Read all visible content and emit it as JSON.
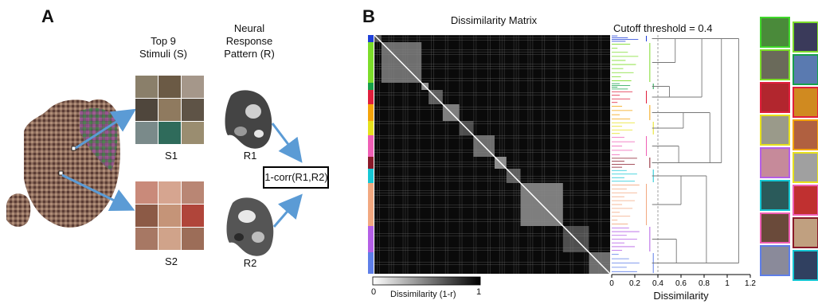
{
  "panel_a": {
    "letter": "A",
    "top9_label_1": "Top 9",
    "top9_label_2": "Stimuli (S)",
    "nrp_label_1": "Neural",
    "nrp_label_2": "Response",
    "nrp_label_3": "Pattern (R)",
    "s1": "S1",
    "s2": "S2",
    "r1": "R1",
    "r2": "R2",
    "formula": "1-corr(R1,R2)"
  },
  "panel_b": {
    "letter": "B",
    "matrix_title": "Dissimilarity Matrix",
    "cutoff_label": "Cutoff threshold = 0.4",
    "colorbar_label": "Dissimilarity (1-r)",
    "colorbar_min": "0",
    "colorbar_max": "1",
    "dendro_xlabel": "Dissimilarity",
    "dendro_ticks": [
      "0",
      "0.2",
      "0.4",
      "0.6",
      "0.8",
      "1",
      "1.2"
    ],
    "dendro_xlim": [
      0,
      1.2
    ],
    "cutoff": 0.4,
    "cluster_colors": [
      "#1f3fd8",
      "#7cdc2a",
      "#17a04a",
      "#e01f3c",
      "#f4a30a",
      "#e6e11d",
      "#ef5fb5",
      "#8a1a2a",
      "#16c7d4",
      "#f2a880",
      "#b45fe6",
      "#5e7ee8"
    ]
  }
}
